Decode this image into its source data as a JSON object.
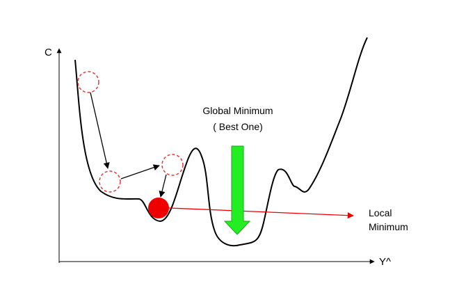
{
  "axes": {
    "y_label": "C",
    "x_label": "Y^"
  },
  "annotations": {
    "global_line1": "Global Minimum",
    "global_line2": "( Best One)",
    "local_line1": "Local",
    "local_line2": "Minimum"
  },
  "colors": {
    "curve": "#000000",
    "step_marker": "#e53935",
    "local_ball": "#ee0000",
    "local_arrow": "#ee0000",
    "global_arrow_fill": "#22ee22",
    "global_arrow_stroke": "#1aa51a"
  }
}
